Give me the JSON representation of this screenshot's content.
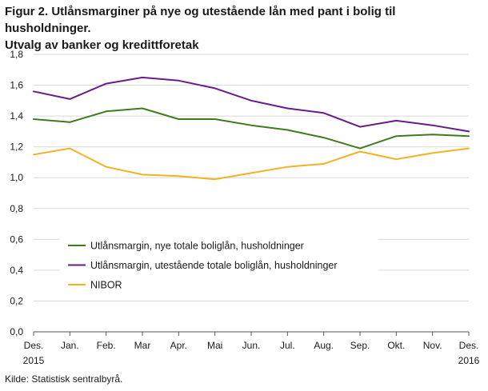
{
  "title_line1": "Figur 2. Utlånsmarginer på nye og utestående lån med pant i bolig til husholdninger.",
  "title_line2": "Utvalg av banker og kredittforetak",
  "source": "Kilde: Statistisk sentralbyrå.",
  "chart_data": {
    "type": "line",
    "categories": [
      "Des.",
      "Jan.",
      "Feb.",
      "Mar",
      "Apr.",
      "Mai",
      "Jun.",
      "Jul.",
      "Aug.",
      "Sep.",
      "Okt.",
      "Nov.",
      "Des."
    ],
    "category_sublabels": [
      "2015",
      "",
      "",
      "",
      "",
      "",
      "",
      "",
      "",
      "",
      "",
      "",
      "2016"
    ],
    "ylim": [
      0,
      1.8
    ],
    "yticks": [
      "0,0",
      "0,2",
      "0,4",
      "0,6",
      "0,8",
      "1,0",
      "1,2",
      "1,4",
      "1,6",
      "1,8"
    ],
    "grid": true,
    "legend_position": "lower-left inside",
    "series": [
      {
        "name": "Utlånsmargin, nye totale boliglån, husholdninger",
        "color": "#3d7d1d",
        "values": [
          1.38,
          1.36,
          1.43,
          1.45,
          1.38,
          1.38,
          1.34,
          1.31,
          1.26,
          1.19,
          1.27,
          1.28,
          1.27
        ]
      },
      {
        "name": "Utlånsmargin, utestående totale boliglån, husholdninger",
        "color": "#6a1b8a",
        "values": [
          1.56,
          1.51,
          1.61,
          1.65,
          1.63,
          1.58,
          1.5,
          1.45,
          1.42,
          1.33,
          1.37,
          1.34,
          1.3
        ]
      },
      {
        "name": "NIBOR",
        "color": "#f0b323",
        "values": [
          1.15,
          1.19,
          1.07,
          1.02,
          1.01,
          0.99,
          1.03,
          1.07,
          1.09,
          1.17,
          1.12,
          1.16,
          1.19
        ]
      }
    ]
  }
}
